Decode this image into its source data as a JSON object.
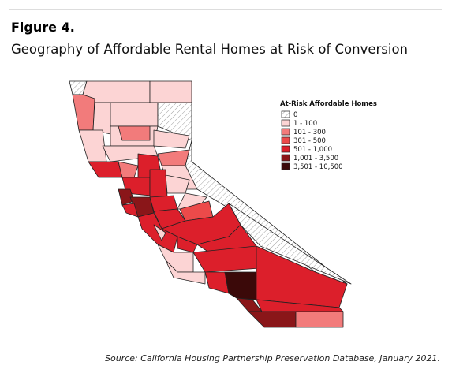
{
  "figure_label": "Figure 4.",
  "title": "Geography of Affordable Rental Homes at Risk of Conversion",
  "legend": {
    "title": "At-Risk Affordable Homes",
    "items": [
      {
        "label": "0",
        "color": "hatch"
      },
      {
        "label": "1 - 100",
        "color": "#fcd4d4"
      },
      {
        "label": "101 - 300",
        "color": "#f27b7b"
      },
      {
        "label": "301 - 500",
        "color": "#ec4a4a"
      },
      {
        "label": "501 - 1,000",
        "color": "#dc1f2b"
      },
      {
        "label": "1,001 - 3,500",
        "color": "#8a1619"
      },
      {
        "label": "3,501 - 10,500",
        "color": "#3b0909"
      }
    ]
  },
  "source": "Source: California Housing Partnership Preservation Database, January 2021."
}
